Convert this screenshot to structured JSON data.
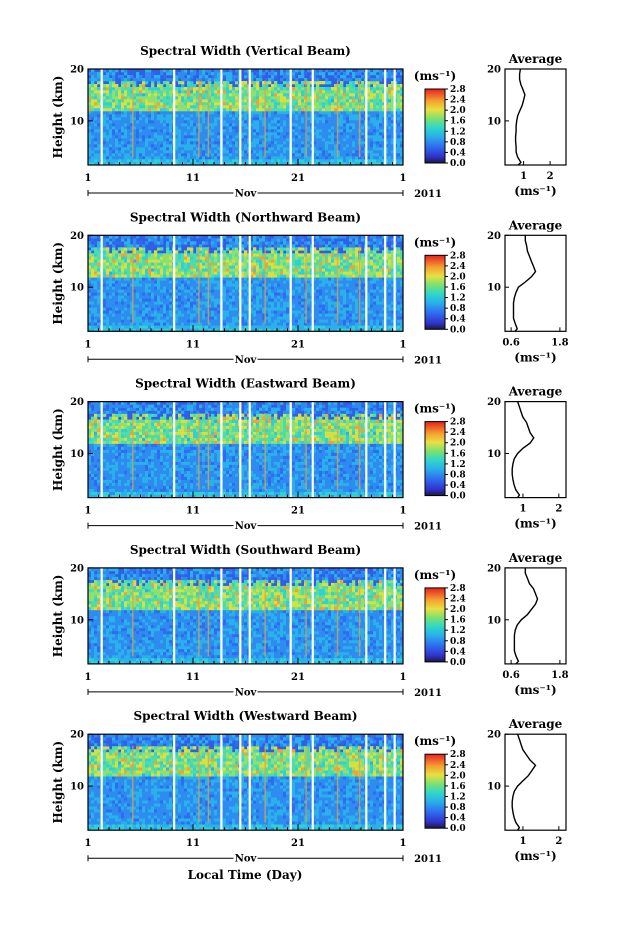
{
  "figure": {
    "xlabel": "Local Time (Day)",
    "month": "Nov",
    "year": "2011",
    "ylabel": "Height (km)",
    "avg_title": "Average",
    "unit": "(ms⁻¹)"
  },
  "chart_data": [
    {
      "type": "heatmap",
      "title": "Spectral Width (Vertical Beam)",
      "xlabel": "Local Time (Day)",
      "ylabel": "Height (km)",
      "x_tick_labels": [
        "1",
        "11",
        "21",
        "1"
      ],
      "xlim_days": [
        1,
        31
      ],
      "y_tick_labels": [
        "10",
        "20"
      ],
      "ylim": [
        1.5,
        20
      ],
      "colorbar": {
        "label": "(ms⁻¹)",
        "ticks": [
          "0.0",
          "0.4",
          "0.8",
          "1.2",
          "1.6",
          "2.0",
          "2.4",
          "2.8"
        ],
        "range": [
          0,
          2.8
        ]
      },
      "average": {
        "title": "Average",
        "xlabel": "(ms⁻¹)",
        "xticks": [
          1,
          2
        ],
        "xtick_labels": [
          "1",
          "2"
        ],
        "xlim": [
          0.3,
          2.6
        ],
        "yticks": [
          10,
          20
        ],
        "ytick_labels": [
          "10",
          "20"
        ],
        "height_km": [
          1.5,
          2,
          3,
          4,
          5,
          6,
          7,
          8,
          9,
          10,
          11,
          12,
          13,
          14,
          15,
          16,
          17,
          18,
          19,
          20
        ],
        "width_ms": [
          0.8,
          0.9,
          0.78,
          0.72,
          0.72,
          0.7,
          0.7,
          0.72,
          0.72,
          0.74,
          0.78,
          0.86,
          0.95,
          1.0,
          1.05,
          0.98,
          0.9,
          0.85,
          0.85,
          0.88
        ]
      }
    },
    {
      "type": "heatmap",
      "title": "Spectral Width (Northward Beam)",
      "xlabel": "Local Time (Day)",
      "ylabel": "Height (km)",
      "x_tick_labels": [
        "1",
        "11",
        "21",
        "1"
      ],
      "xlim_days": [
        1,
        31
      ],
      "y_tick_labels": [
        "10",
        "20"
      ],
      "ylim": [
        1.5,
        20
      ],
      "colorbar": {
        "label": "(ms⁻¹)",
        "ticks": [
          "0.0",
          "0.4",
          "0.8",
          "1.2",
          "1.6",
          "2.0",
          "2.4",
          "2.8"
        ],
        "range": [
          0,
          2.8
        ]
      },
      "average": {
        "title": "Average",
        "xlabel": "(ms⁻¹)",
        "xticks": [
          0.6,
          1.8
        ],
        "xtick_labels": [
          "0.6",
          "1.8"
        ],
        "xlim": [
          0.45,
          1.95
        ],
        "yticks": [
          10,
          20
        ],
        "ytick_labels": [
          "10",
          "20"
        ],
        "height_km": [
          1.5,
          2,
          3,
          4,
          5,
          6,
          7,
          8,
          9,
          10,
          11,
          12,
          13,
          14,
          15,
          16,
          17,
          18,
          19,
          20
        ],
        "width_ms": [
          0.7,
          0.75,
          0.7,
          0.66,
          0.66,
          0.66,
          0.66,
          0.68,
          0.72,
          0.78,
          0.95,
          1.1,
          1.2,
          1.15,
          1.1,
          1.05,
          1.0,
          0.98,
          0.95,
          0.95
        ]
      }
    },
    {
      "type": "heatmap",
      "title": "Spectral Width (Eastward Beam)",
      "xlabel": "Local Time (Day)",
      "ylabel": "Height (km)",
      "x_tick_labels": [
        "1",
        "11",
        "21",
        "1"
      ],
      "xlim_days": [
        1,
        31
      ],
      "y_tick_labels": [
        "10",
        "20"
      ],
      "ylim": [
        1.5,
        20
      ],
      "colorbar": {
        "label": "(ms⁻¹)",
        "ticks": [
          "0.0",
          "0.4",
          "0.8",
          "1.2",
          "1.6",
          "2.0",
          "2.4",
          "2.8"
        ],
        "range": [
          0,
          2.8
        ]
      },
      "average": {
        "title": "Average",
        "xlabel": "(ms⁻¹)",
        "xticks": [
          1,
          2
        ],
        "xtick_labels": [
          "1",
          "2"
        ],
        "xlim": [
          0.5,
          2.2
        ],
        "yticks": [
          10,
          20
        ],
        "ytick_labels": [
          "10",
          "20"
        ],
        "height_km": [
          1.5,
          2,
          3,
          4,
          5,
          6,
          7,
          8,
          9,
          10,
          11,
          12,
          13,
          14,
          15,
          16,
          17,
          18,
          19,
          20
        ],
        "width_ms": [
          0.85,
          0.9,
          0.8,
          0.75,
          0.72,
          0.7,
          0.7,
          0.72,
          0.76,
          0.85,
          1.0,
          1.2,
          1.3,
          1.2,
          1.15,
          1.1,
          1.0,
          0.95,
          0.9,
          0.85
        ]
      }
    },
    {
      "type": "heatmap",
      "title": "Spectral Width (Southward Beam)",
      "xlabel": "Local Time (Day)",
      "ylabel": "Height (km)",
      "x_tick_labels": [
        "1",
        "11",
        "21",
        "1"
      ],
      "xlim_days": [
        1,
        31
      ],
      "y_tick_labels": [
        "10",
        "20"
      ],
      "ylim": [
        1.5,
        20
      ],
      "colorbar": {
        "label": "(ms⁻¹)",
        "ticks": [
          "0.0",
          "0.4",
          "0.8",
          "1.2",
          "1.6",
          "2.0",
          "2.4",
          "2.8"
        ],
        "range": [
          0,
          2.8
        ]
      },
      "average": {
        "title": "Average",
        "xlabel": "(ms⁻¹)",
        "xticks": [
          0.6,
          1.8
        ],
        "xtick_labels": [
          "0.6",
          "1.8"
        ],
        "xlim": [
          0.45,
          1.95
        ],
        "yticks": [
          10,
          20
        ],
        "ytick_labels": [
          "10",
          "20"
        ],
        "height_km": [
          1.5,
          2,
          3,
          4,
          5,
          6,
          7,
          8,
          9,
          10,
          11,
          12,
          13,
          14,
          15,
          16,
          17,
          18,
          19,
          20
        ],
        "width_ms": [
          0.72,
          0.78,
          0.72,
          0.68,
          0.68,
          0.68,
          0.68,
          0.7,
          0.75,
          0.85,
          1.0,
          1.1,
          1.2,
          1.25,
          1.2,
          1.15,
          1.05,
          1.0,
          0.95,
          0.95
        ]
      }
    },
    {
      "type": "heatmap",
      "title": "Spectral Width (Westward Beam)",
      "xlabel": "Local Time (Day)",
      "ylabel": "Height (km)",
      "x_tick_labels": [
        "1",
        "11",
        "21",
        "1"
      ],
      "xlim_days": [
        1,
        31
      ],
      "y_tick_labels": [
        "10",
        "20"
      ],
      "ylim": [
        1.5,
        20
      ],
      "colorbar": {
        "label": "(ms⁻¹)",
        "ticks": [
          "0.0",
          "0.4",
          "0.8",
          "1.2",
          "1.6",
          "2.0",
          "2.4",
          "2.8"
        ],
        "range": [
          0,
          2.8
        ]
      },
      "average": {
        "title": "Average",
        "xlabel": "(ms⁻¹)",
        "xticks": [
          1,
          2
        ],
        "xtick_labels": [
          "1",
          "2"
        ],
        "xlim": [
          0.5,
          2.2
        ],
        "yticks": [
          10,
          20
        ],
        "ytick_labels": [
          "10",
          "20"
        ],
        "height_km": [
          1.5,
          2,
          3,
          4,
          5,
          6,
          7,
          8,
          9,
          10,
          11,
          12,
          13,
          14,
          15,
          16,
          17,
          18,
          19,
          20
        ],
        "width_ms": [
          0.85,
          0.9,
          0.8,
          0.75,
          0.72,
          0.7,
          0.7,
          0.72,
          0.76,
          0.85,
          1.0,
          1.15,
          1.25,
          1.35,
          1.2,
          1.1,
          1.0,
          0.95,
          0.9,
          0.85
        ]
      }
    }
  ]
}
